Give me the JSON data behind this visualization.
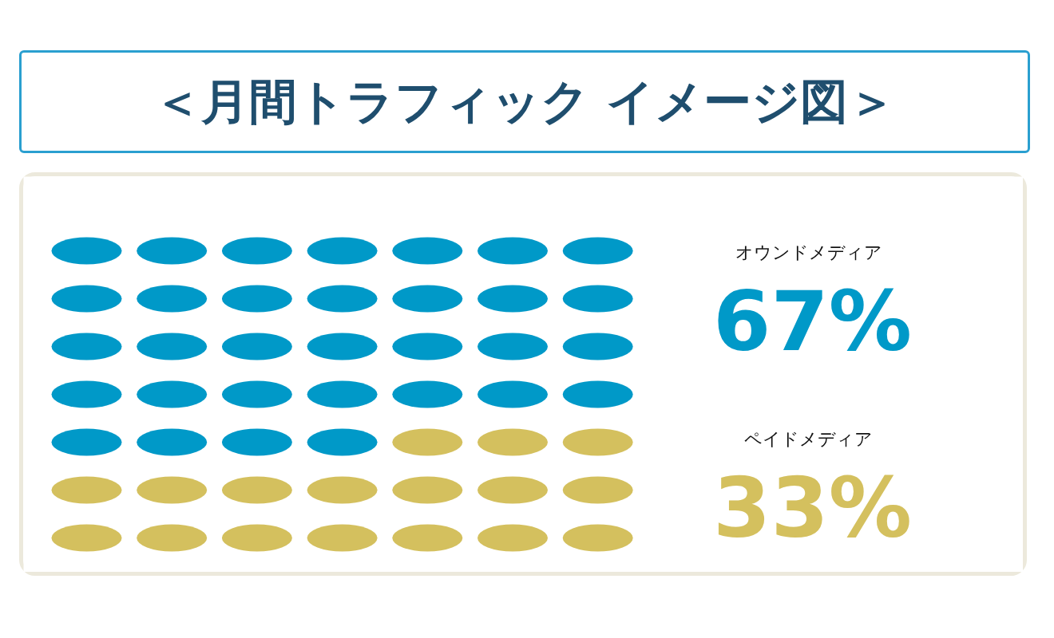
{
  "chart_data": {
    "type": "other",
    "title": "＜月間トラフィック イメージ図＞",
    "categories": [
      "オウンドメディア",
      "ペイドメディア"
    ],
    "values": [
      67,
      33
    ],
    "colors": [
      "#0099c8",
      "#d4c05e"
    ],
    "value_labels": [
      "67%",
      "33%"
    ]
  }
}
